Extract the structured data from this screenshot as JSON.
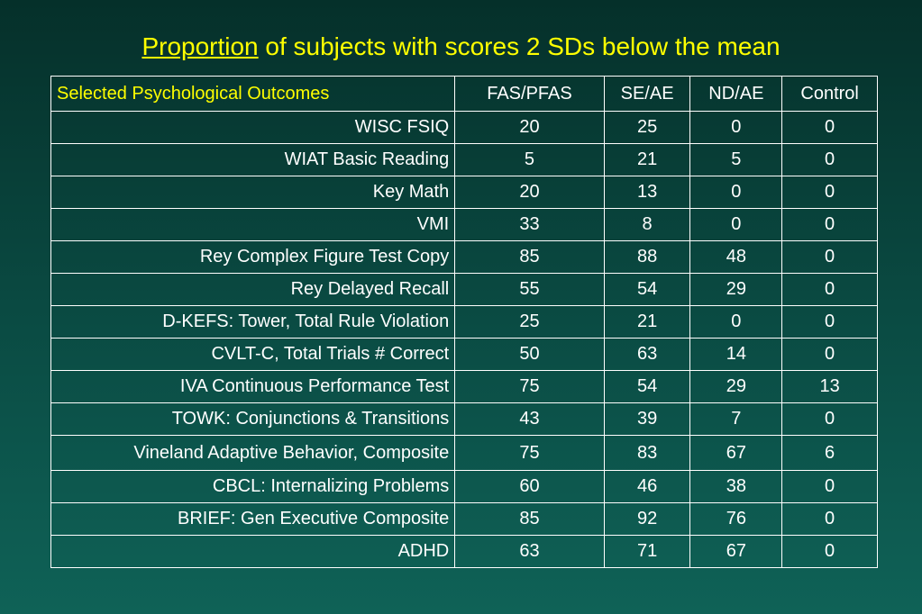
{
  "slide": {
    "title_underlined": "Proportion",
    "title_rest": " of subjects with scores 2 SDs below the mean"
  },
  "table": {
    "corner_label": "Selected Psychological Outcomes",
    "columns": [
      "FAS/PFAS",
      "SE/AE",
      "ND/AE",
      "Control"
    ],
    "rows": [
      {
        "label": "WISC FSIQ",
        "values": [
          "20",
          "25",
          "0",
          "0"
        ]
      },
      {
        "label": "WIAT Basic Reading",
        "values": [
          "5",
          "21",
          "5",
          "0"
        ]
      },
      {
        "label": "Key Math",
        "values": [
          "20",
          "13",
          "0",
          "0"
        ]
      },
      {
        "label": "VMI",
        "values": [
          "33",
          "8",
          "0",
          "0"
        ]
      },
      {
        "label": "Rey Complex Figure Test Copy",
        "values": [
          "85",
          "88",
          "48",
          "0"
        ]
      },
      {
        "label": "Rey Delayed Recall",
        "values": [
          "55",
          "54",
          "29",
          "0"
        ]
      },
      {
        "label": "D-KEFS: Tower, Total Rule Violation",
        "values": [
          "25",
          "21",
          "0",
          "0"
        ]
      },
      {
        "label": "CVLT-C, Total Trials # Correct",
        "values": [
          "50",
          "63",
          "14",
          "0"
        ]
      },
      {
        "label": "IVA Continuous Performance Test",
        "values": [
          "75",
          "54",
          "29",
          "13"
        ]
      },
      {
        "label": "TOWK: Conjunctions & Transitions",
        "values": [
          "43",
          "39",
          "7",
          "0"
        ]
      },
      {
        "label": "Vineland Adaptive Behavior, Composite",
        "values": [
          "75",
          "83",
          "67",
          "6"
        ]
      },
      {
        "label": "CBCL: Internalizing Problems",
        "values": [
          "60",
          "46",
          "38",
          "0"
        ]
      },
      {
        "label": "BRIEF: Gen Executive Composite",
        "values": [
          "85",
          "92",
          "76",
          "0"
        ]
      },
      {
        "label": "ADHD",
        "values": [
          "63",
          "71",
          "67",
          "0"
        ]
      }
    ]
  },
  "colors": {
    "title": "#ffff00",
    "corner_label": "#ffff00",
    "text": "#ffffff",
    "background_top": "#05302a",
    "background_bottom": "#0f6257"
  }
}
